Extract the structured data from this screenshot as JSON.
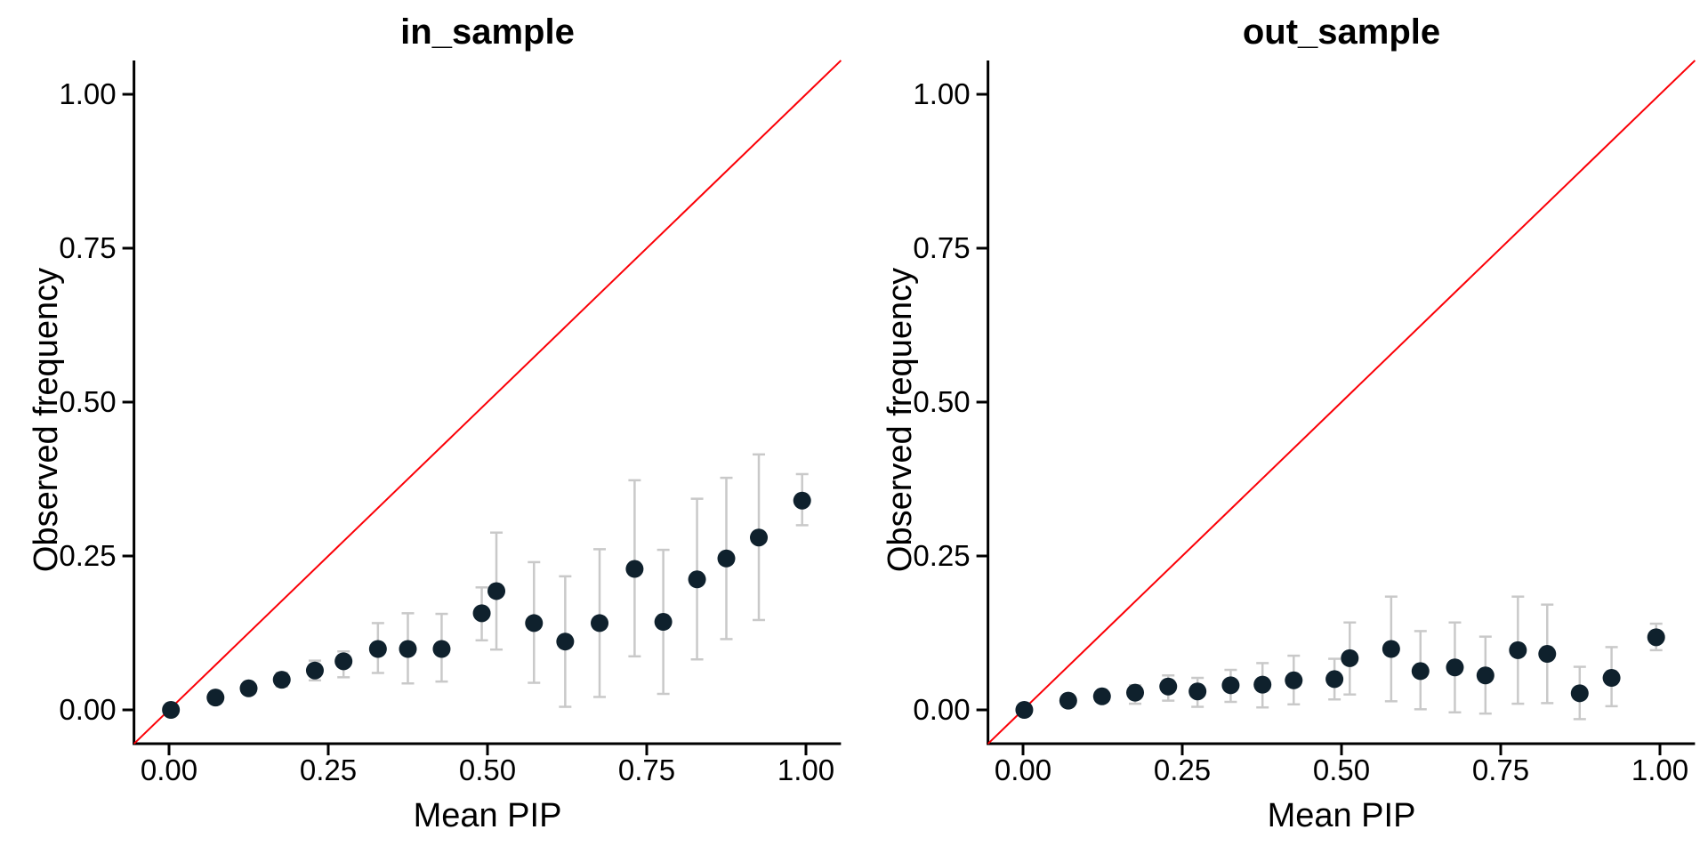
{
  "figure": {
    "background": "#ffffff",
    "axis_color": "#000000",
    "point_color": "#0f212d",
    "error_bar_color": "#c9c9c9",
    "identity_line_color": "#fb0007"
  },
  "panels": [
    {
      "title": "in_sample",
      "xlabel": "Mean PIP",
      "ylabel": "Observed frequency"
    },
    {
      "title": "out_sample",
      "xlabel": "Mean PIP",
      "ylabel": "Observed frequency"
    }
  ],
  "chart_data": [
    {
      "type": "scatter",
      "title": "in_sample",
      "xlabel": "Mean PIP",
      "ylabel": "Observed frequency",
      "xlim": [
        -0.055,
        1.055
      ],
      "ylim": [
        -0.055,
        1.055
      ],
      "x_ticks": [
        0,
        0.25,
        0.5,
        0.75,
        1
      ],
      "y_ticks": [
        0,
        0.25,
        0.5,
        0.75,
        1
      ],
      "x_tick_labels": [
        "0.00",
        "0.25",
        "0.50",
        "0.75",
        "1.00"
      ],
      "y_tick_labels": [
        "0.00",
        "0.25",
        "0.50",
        "0.75",
        "1.00"
      ],
      "grid": false,
      "legend": "none",
      "reference_line": "y = x",
      "points": [
        {
          "x": 0.003,
          "y": 0.0,
          "lo": 0.0,
          "hi": 0.0
        },
        {
          "x": 0.073,
          "y": 0.02,
          "lo": 0.02,
          "hi": 0.02
        },
        {
          "x": 0.125,
          "y": 0.035,
          "lo": 0.035,
          "hi": 0.035
        },
        {
          "x": 0.177,
          "y": 0.049,
          "lo": 0.038,
          "hi": 0.06
        },
        {
          "x": 0.229,
          "y": 0.064,
          "lo": 0.048,
          "hi": 0.08
        },
        {
          "x": 0.274,
          "y": 0.079,
          "lo": 0.053,
          "hi": 0.095
        },
        {
          "x": 0.328,
          "y": 0.099,
          "lo": 0.06,
          "hi": 0.141
        },
        {
          "x": 0.375,
          "y": 0.099,
          "lo": 0.043,
          "hi": 0.157
        },
        {
          "x": 0.428,
          "y": 0.099,
          "lo": 0.046,
          "hi": 0.156
        },
        {
          "x": 0.491,
          "y": 0.157,
          "lo": 0.113,
          "hi": 0.199
        },
        {
          "x": 0.514,
          "y": 0.193,
          "lo": 0.098,
          "hi": 0.288
        },
        {
          "x": 0.573,
          "y": 0.141,
          "lo": 0.044,
          "hi": 0.24
        },
        {
          "x": 0.622,
          "y": 0.111,
          "lo": 0.005,
          "hi": 0.217
        },
        {
          "x": 0.676,
          "y": 0.141,
          "lo": 0.021,
          "hi": 0.261
        },
        {
          "x": 0.731,
          "y": 0.229,
          "lo": 0.087,
          "hi": 0.373
        },
        {
          "x": 0.776,
          "y": 0.143,
          "lo": 0.026,
          "hi": 0.26
        },
        {
          "x": 0.829,
          "y": 0.212,
          "lo": 0.082,
          "hi": 0.343
        },
        {
          "x": 0.875,
          "y": 0.246,
          "lo": 0.115,
          "hi": 0.377
        },
        {
          "x": 0.926,
          "y": 0.28,
          "lo": 0.146,
          "hi": 0.415
        },
        {
          "x": 0.994,
          "y": 0.34,
          "lo": 0.3,
          "hi": 0.383
        }
      ]
    },
    {
      "type": "scatter",
      "title": "out_sample",
      "xlabel": "Mean PIP",
      "ylabel": "Observed frequency",
      "xlim": [
        -0.055,
        1.055
      ],
      "ylim": [
        -0.055,
        1.055
      ],
      "x_ticks": [
        0,
        0.25,
        0.5,
        0.75,
        1
      ],
      "y_ticks": [
        0,
        0.25,
        0.5,
        0.75,
        1
      ],
      "x_tick_labels": [
        "0.00",
        "0.25",
        "0.50",
        "0.75",
        "1.00"
      ],
      "y_tick_labels": [
        "0.00",
        "0.25",
        "0.50",
        "0.75",
        "1.00"
      ],
      "grid": false,
      "legend": "none",
      "reference_line": "y = x",
      "points": [
        {
          "x": 0.002,
          "y": 0.0,
          "lo": 0.0,
          "hi": 0.0
        },
        {
          "x": 0.071,
          "y": 0.015,
          "lo": 0.015,
          "hi": 0.015
        },
        {
          "x": 0.124,
          "y": 0.022,
          "lo": 0.022,
          "hi": 0.022
        },
        {
          "x": 0.176,
          "y": 0.028,
          "lo": 0.01,
          "hi": 0.04
        },
        {
          "x": 0.228,
          "y": 0.038,
          "lo": 0.015,
          "hi": 0.056
        },
        {
          "x": 0.274,
          "y": 0.03,
          "lo": 0.005,
          "hi": 0.052
        },
        {
          "x": 0.326,
          "y": 0.04,
          "lo": 0.013,
          "hi": 0.065
        },
        {
          "x": 0.376,
          "y": 0.041,
          "lo": 0.004,
          "hi": 0.076
        },
        {
          "x": 0.425,
          "y": 0.048,
          "lo": 0.009,
          "hi": 0.088
        },
        {
          "x": 0.489,
          "y": 0.05,
          "lo": 0.017,
          "hi": 0.083
        },
        {
          "x": 0.513,
          "y": 0.084,
          "lo": 0.025,
          "hi": 0.142
        },
        {
          "x": 0.578,
          "y": 0.099,
          "lo": 0.014,
          "hi": 0.184
        },
        {
          "x": 0.624,
          "y": 0.063,
          "lo": 0.001,
          "hi": 0.128
        },
        {
          "x": 0.678,
          "y": 0.069,
          "lo": -0.004,
          "hi": 0.142
        },
        {
          "x": 0.726,
          "y": 0.056,
          "lo": -0.006,
          "hi": 0.119
        },
        {
          "x": 0.777,
          "y": 0.097,
          "lo": 0.01,
          "hi": 0.184
        },
        {
          "x": 0.823,
          "y": 0.091,
          "lo": 0.011,
          "hi": 0.171
        },
        {
          "x": 0.874,
          "y": 0.027,
          "lo": -0.015,
          "hi": 0.07
        },
        {
          "x": 0.924,
          "y": 0.052,
          "lo": 0.006,
          "hi": 0.102
        },
        {
          "x": 0.994,
          "y": 0.118,
          "lo": 0.097,
          "hi": 0.14
        }
      ]
    }
  ]
}
